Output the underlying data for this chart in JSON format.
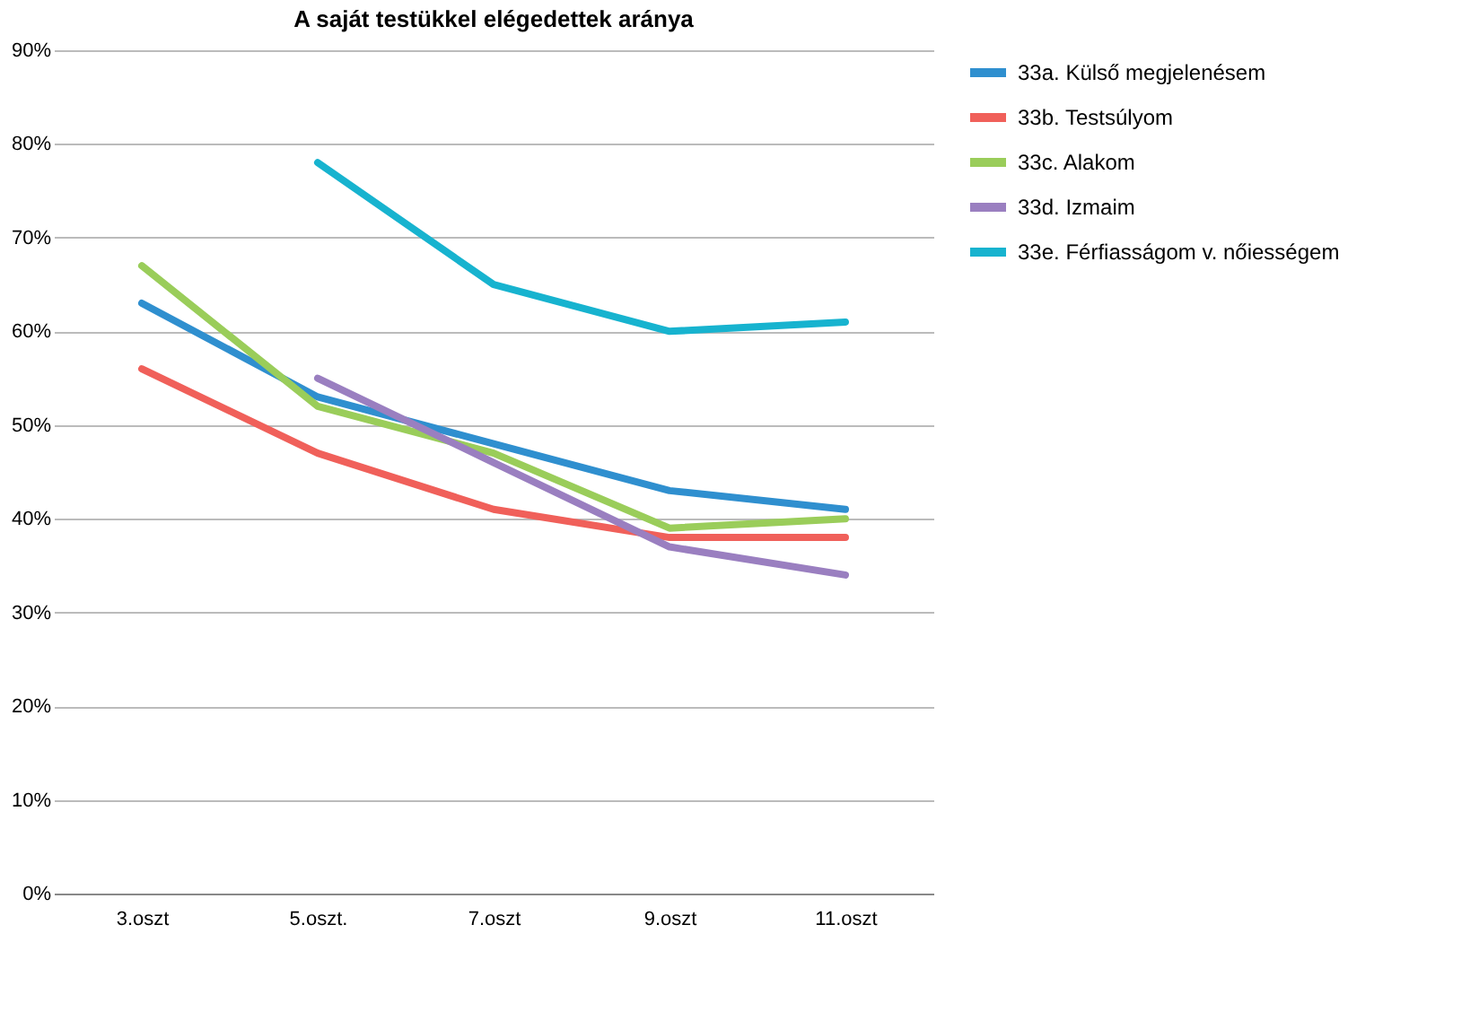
{
  "chart_data": {
    "type": "line",
    "title": "A saját testükkel elégedettek aránya",
    "categories": [
      "3.oszt",
      "5.oszt.",
      "7.oszt",
      "9.oszt",
      "11.oszt"
    ],
    "series": [
      {
        "name": "33a.   Külső megjelenésem",
        "color": "#2f8fcf",
        "values": [
          63,
          53,
          48,
          43,
          41
        ]
      },
      {
        "name": "33b.   Testsúlyom",
        "color": "#f0605a",
        "values": [
          56,
          47,
          41,
          38,
          38
        ]
      },
      {
        "name": "33c.   Alakom",
        "color": "#9acd5a",
        "values": [
          67,
          52,
          47,
          39,
          40
        ]
      },
      {
        "name": "33d.   Izmaim",
        "color": "#9a7fc0",
        "values": [
          null,
          55,
          46,
          37,
          34
        ]
      },
      {
        "name": "33e.   Férfiasságom v. nőiességem",
        "color": "#17b3cf",
        "values": [
          null,
          78,
          65,
          60,
          61
        ]
      }
    ],
    "ylim": [
      0,
      90
    ],
    "yticks": [
      {
        "value": 0,
        "label": "0%"
      },
      {
        "value": 10,
        "label": "10%"
      },
      {
        "value": 20,
        "label": "20%"
      },
      {
        "value": 30,
        "label": "30%"
      },
      {
        "value": 40,
        "label": "40%"
      },
      {
        "value": 50,
        "label": "50%"
      },
      {
        "value": 60,
        "label": "60%"
      },
      {
        "value": 70,
        "label": "70%"
      },
      {
        "value": 80,
        "label": "80%"
      },
      {
        "value": 90,
        "label": "90%"
      }
    ],
    "grid": "y",
    "legend": "right",
    "marker": "none",
    "line_style": "solid"
  }
}
